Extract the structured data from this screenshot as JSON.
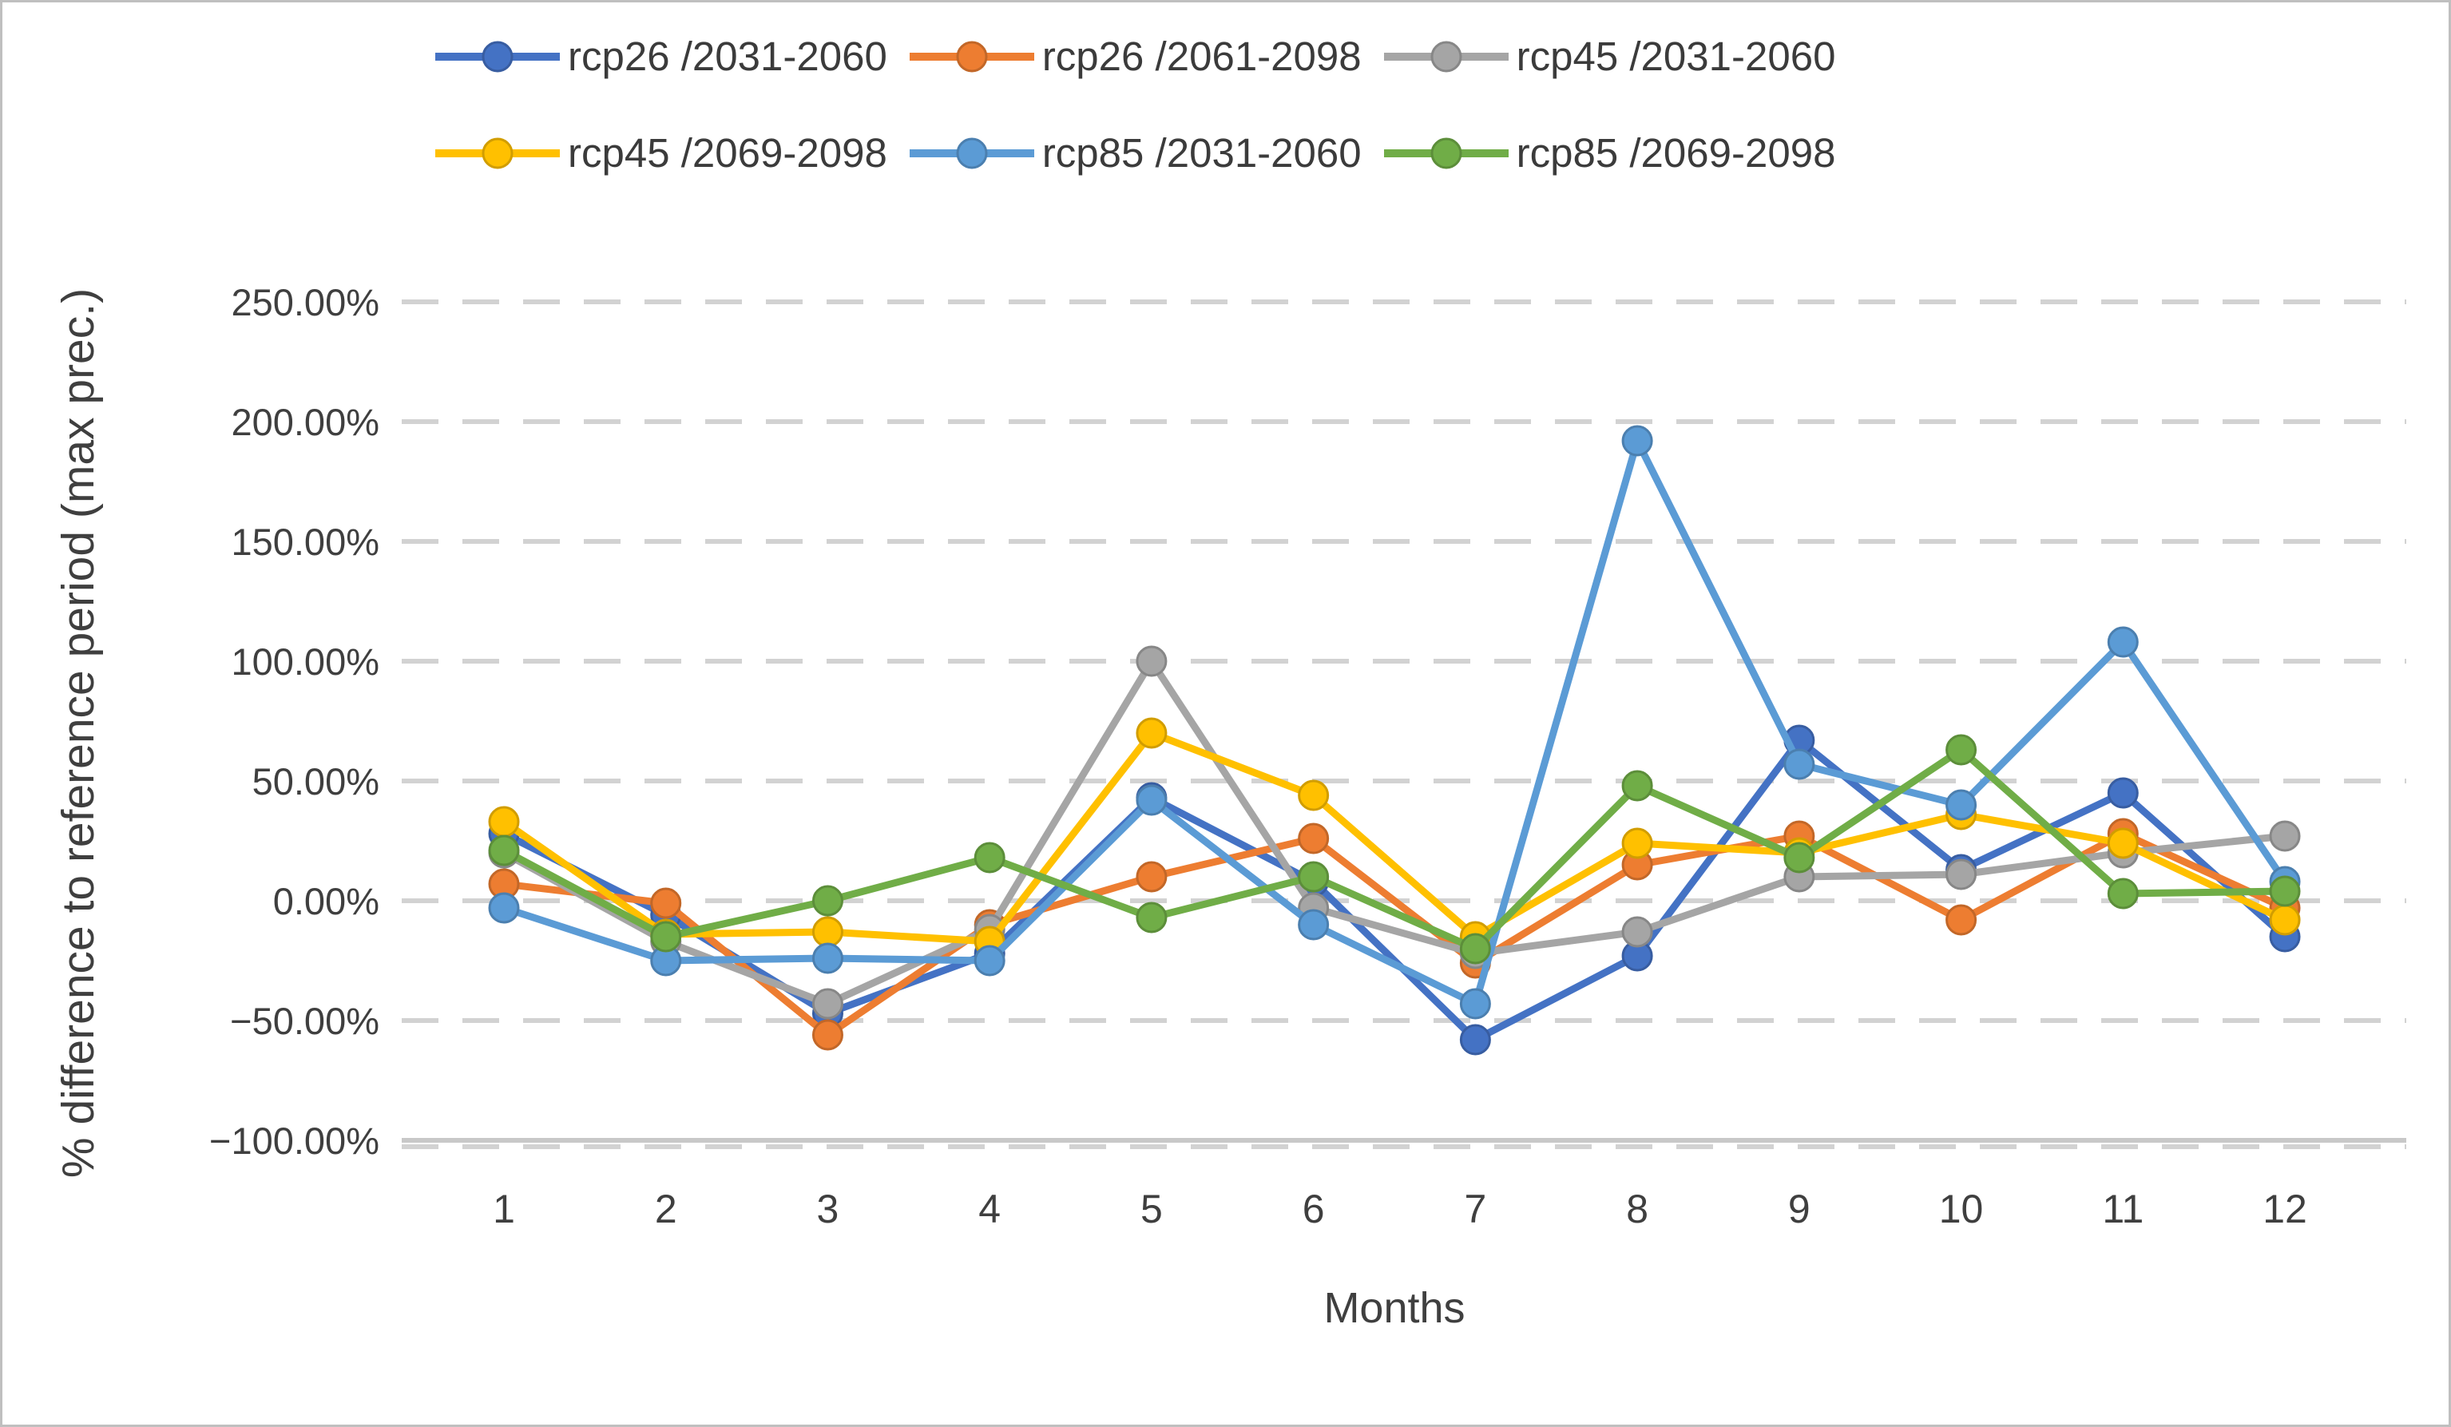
{
  "page": {
    "background": "#ffffff",
    "border_color": "#bfbfbf"
  },
  "chart_data": {
    "type": "line",
    "title": "",
    "xlabel": "Months",
    "ylabel": "% difference to reference period (max prec.)",
    "x": [
      1,
      2,
      3,
      4,
      5,
      6,
      7,
      8,
      9,
      10,
      11,
      12
    ],
    "xtick_labels": [
      "1",
      "2",
      "3",
      "4",
      "5",
      "6",
      "7",
      "8",
      "9",
      "10",
      "11",
      "12"
    ],
    "ylim": [
      -100,
      250
    ],
    "ytick_step": 50,
    "ytick_values": [
      250,
      200,
      150,
      100,
      50,
      0,
      -50,
      -100
    ],
    "ytick_labels": [
      "250.00%",
      "200.00%",
      "150.00%",
      "100.00%",
      "50.00%",
      "0.00%",
      "−50.00%",
      "−100.00%"
    ],
    "grid": "horizontal-dashed",
    "legend_position": "top",
    "gridline_color": "#d2d2d2",
    "axis_line_color": "#c8c8c8",
    "tick_text_color": "#3f3f3f",
    "series": [
      {
        "name": "rcp26 /2031-2060",
        "color": "#4472C4",
        "values": [
          28,
          -6,
          -47,
          -22,
          43,
          8,
          -58,
          -23,
          67,
          13,
          45,
          -15
        ]
      },
      {
        "name": "rcp26 /2061-2098",
        "color": "#ED7D31",
        "values": [
          7,
          -1,
          -56,
          -10,
          10,
          26,
          -26,
          15,
          27,
          -8,
          28,
          -3
        ]
      },
      {
        "name": "rcp45 /2031-2060",
        "color": "#A5A5A5",
        "values": [
          20,
          -17,
          -43,
          -12,
          100,
          -3,
          -22,
          -13,
          10,
          11,
          20,
          27
        ]
      },
      {
        "name": "rcp45 /2069-2098",
        "color": "#FFC000",
        "values": [
          33,
          -14,
          -13,
          -17,
          70,
          44,
          -15,
          24,
          20,
          36,
          24,
          -8
        ]
      },
      {
        "name": "rcp85 /2031-2060",
        "color": "#5B9BD5",
        "values": [
          -3,
          -25,
          -24,
          -25,
          42,
          -10,
          -43,
          192,
          57,
          40,
          108,
          8
        ]
      },
      {
        "name": "rcp85 /2069-2098",
        "color": "#70AD47",
        "values": [
          21,
          -15,
          0,
          18,
          -7,
          10,
          -20,
          48,
          18,
          63,
          3,
          4
        ]
      }
    ]
  }
}
